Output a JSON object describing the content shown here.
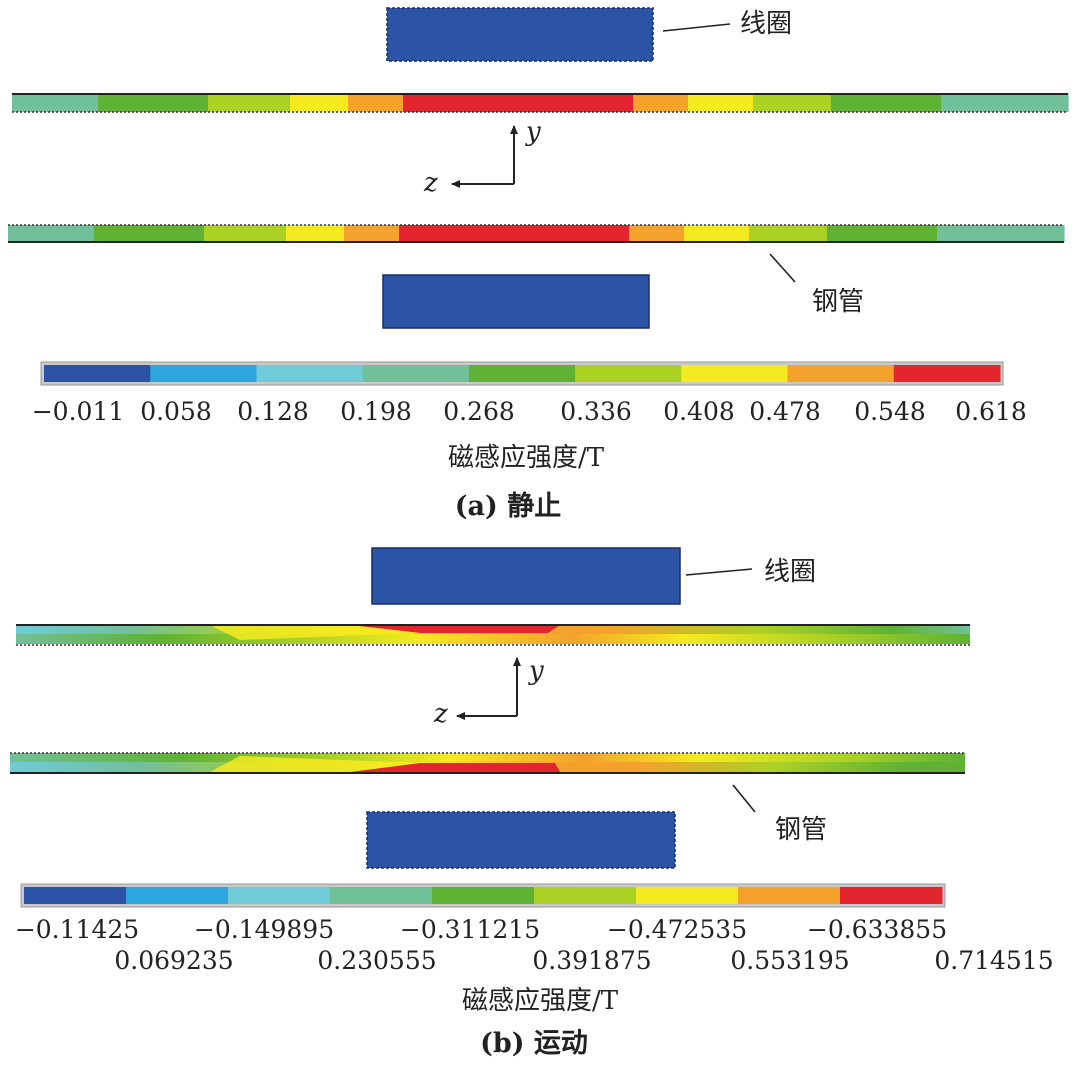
{
  "palette": [
    "#2b53a6",
    "#2da6df",
    "#6fcbd8",
    "#72c09a",
    "#5fb234",
    "#acd125",
    "#f5ea20",
    "#f4a22c",
    "#e3262d"
  ],
  "coil_color": "#2b53a6",
  "panel_a": {
    "coil_label": "线圈",
    "pipe_label": "钢管",
    "axis_y": "y",
    "axis_z": "z",
    "colorbar_ticks": [
      "−0.011",
      "0.058",
      "0.128",
      "0.198",
      "0.268",
      "0.336",
      "0.408",
      "0.478",
      "0.548",
      "0.618"
    ],
    "unit_label": "磁感应强度/T",
    "caption": "(a) 静止",
    "top_pipe_bands": [
      3,
      4,
      5,
      6,
      7,
      8,
      7,
      6,
      5,
      4,
      3
    ],
    "bottom_pipe_bands": [
      3,
      4,
      5,
      6,
      7,
      8,
      7,
      6,
      5,
      4,
      3
    ]
  },
  "panel_b": {
    "coil_label": "线圈",
    "pipe_label": "钢管",
    "axis_y": "y",
    "axis_z": "z",
    "colorbar_ticks_row1": [
      "−0.11425",
      "−0.149895",
      "−0.311215",
      "−0.472535",
      "−0.633855"
    ],
    "colorbar_ticks_row2": [
      "0.069235",
      "0.230555",
      "0.391875",
      "0.553195",
      "0.714515"
    ],
    "unit_label": "磁感应强度/T",
    "caption": "(b) 运动"
  }
}
